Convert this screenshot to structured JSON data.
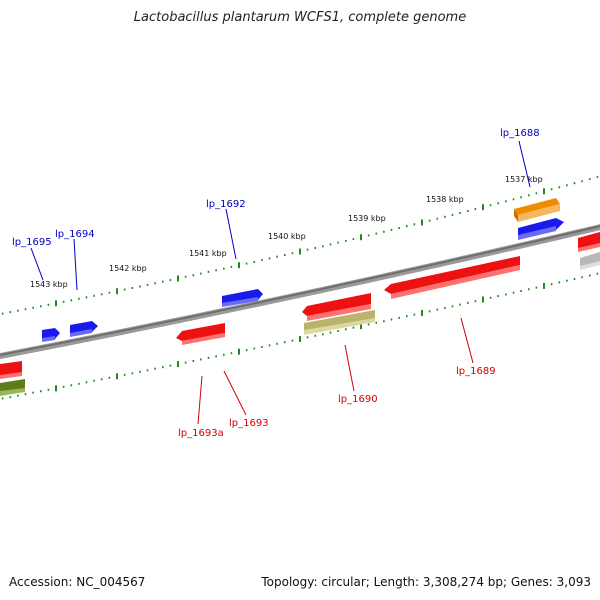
{
  "title": "Lactobacillus plantarum WCFS1, complete genome",
  "accession": "Accession: NC_004567",
  "summary": "Topology: circular; Length: 3,308,274 bp; Genes: 3,093",
  "colors": {
    "backbone": "#888888",
    "tick": "#1f8a1f",
    "forward_label": "#0000c0",
    "reverse_label": "#d40000",
    "gene_red": "#ee1111",
    "gene_blue": "#1a1aee",
    "gene_orange": "#f08c00",
    "gene_olive": "#bcb36a",
    "gene_darkolive": "#5e7d1a",
    "gene_grey": "#b8b8b8"
  },
  "kbp_labels": [
    "1537 kbp",
    "1538 kbp",
    "1539 kbp",
    "1540 kbp",
    "1541 kbp",
    "1542 kbp",
    "1543 kbp"
  ],
  "gene_labels": {
    "lp_1688": "lp_1688",
    "lp_1689": "lp_1689",
    "lp_1690": "lp_1690",
    "lp_1692": "lp_1692",
    "lp_1693": "lp_1693",
    "lp_1693a": "lp_1693a",
    "lp_1694": "lp_1694",
    "lp_1695": "lp_1695"
  }
}
